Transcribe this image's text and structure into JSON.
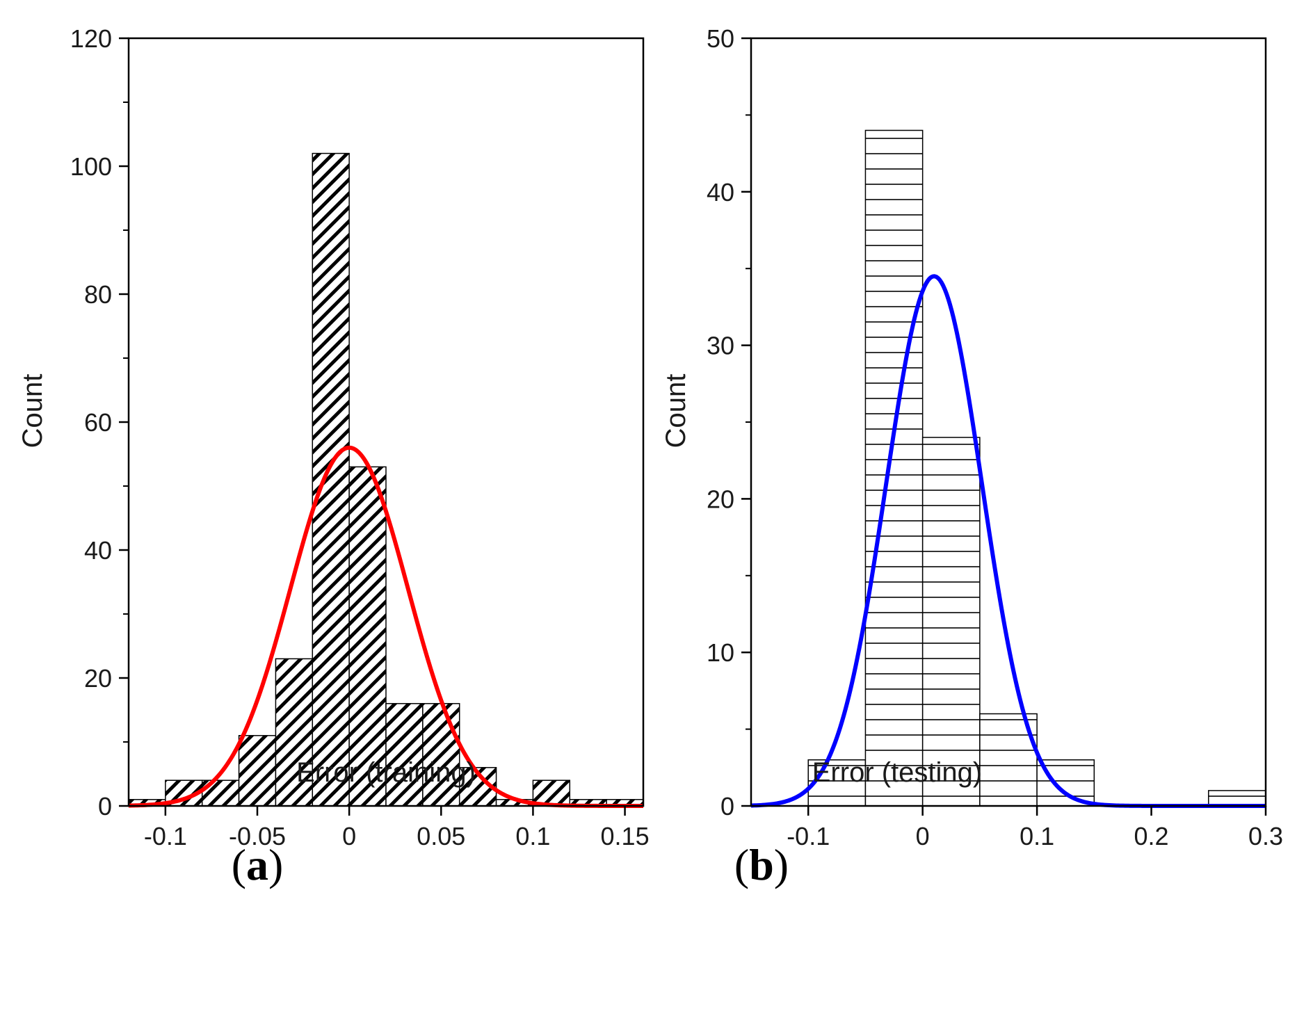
{
  "chart_data": [
    {
      "type": "bar",
      "subtype": "histogram",
      "panel_label": {
        "open": "(",
        "letter": "a",
        "close": ")"
      },
      "xlabel": "Error (training)",
      "ylabel": "Count",
      "xlim": [
        -0.12,
        0.16
      ],
      "ylim": [
        0,
        120
      ],
      "xticks": [
        -0.1,
        -0.05,
        0,
        0.05,
        0.1,
        0.15
      ],
      "xtick_labels": [
        "-0.1",
        "-0.05",
        "0",
        "0.05",
        "0.1",
        "0.15"
      ],
      "yticks": [
        0,
        20,
        40,
        60,
        80,
        100,
        120
      ],
      "ytick_labels": [
        "0",
        "20",
        "40",
        "60",
        "80",
        "100",
        "120"
      ],
      "y_minor_step": 10,
      "bar_pattern": "diagonal",
      "bins": [
        {
          "x0": -0.12,
          "x1": -0.1,
          "count": 1
        },
        {
          "x0": -0.1,
          "x1": -0.08,
          "count": 4
        },
        {
          "x0": -0.08,
          "x1": -0.06,
          "count": 4
        },
        {
          "x0": -0.06,
          "x1": -0.04,
          "count": 11
        },
        {
          "x0": -0.04,
          "x1": -0.02,
          "count": 23
        },
        {
          "x0": -0.02,
          "x1": 0.0,
          "count": 102
        },
        {
          "x0": 0.0,
          "x1": 0.02,
          "count": 53
        },
        {
          "x0": 0.02,
          "x1": 0.04,
          "count": 16
        },
        {
          "x0": 0.04,
          "x1": 0.06,
          "count": 16
        },
        {
          "x0": 0.06,
          "x1": 0.08,
          "count": 6
        },
        {
          "x0": 0.08,
          "x1": 0.1,
          "count": 1
        },
        {
          "x0": 0.1,
          "x1": 0.12,
          "count": 4
        },
        {
          "x0": 0.12,
          "x1": 0.14,
          "count": 1
        },
        {
          "x0": 0.14,
          "x1": 0.16,
          "count": 1
        }
      ],
      "fit_curve": {
        "kind": "gaussian",
        "peak": 56,
        "mean": 0.0,
        "sigma": 0.032,
        "color": "#ff0000"
      }
    },
    {
      "type": "bar",
      "subtype": "histogram",
      "panel_label": {
        "open": "(",
        "letter": "b",
        "close": ")"
      },
      "xlabel": "Error (testing)",
      "ylabel": "Count",
      "xlim": [
        -0.15,
        0.3
      ],
      "ylim": [
        0,
        50
      ],
      "xticks": [
        -0.1,
        0,
        0.1,
        0.2,
        0.3
      ],
      "xtick_labels": [
        "-0.1",
        "0",
        "0.1",
        "0.2",
        "0.3"
      ],
      "yticks": [
        0,
        10,
        20,
        30,
        40,
        50
      ],
      "ytick_labels": [
        "0",
        "10",
        "20",
        "30",
        "40",
        "50"
      ],
      "y_minor_step": 5,
      "bar_pattern": "horizontal",
      "bins": [
        {
          "x0": -0.1,
          "x1": -0.05,
          "count": 3
        },
        {
          "x0": -0.05,
          "x1": 0.0,
          "count": 44
        },
        {
          "x0": 0.0,
          "x1": 0.05,
          "count": 24
        },
        {
          "x0": 0.05,
          "x1": 0.1,
          "count": 6
        },
        {
          "x0": 0.1,
          "x1": 0.15,
          "count": 3
        },
        {
          "x0": 0.25,
          "x1": 0.3,
          "count": 1
        }
      ],
      "fit_curve": {
        "kind": "gaussian",
        "peak": 34.5,
        "mean": 0.01,
        "sigma": 0.042,
        "color": "#0000ff"
      }
    }
  ]
}
